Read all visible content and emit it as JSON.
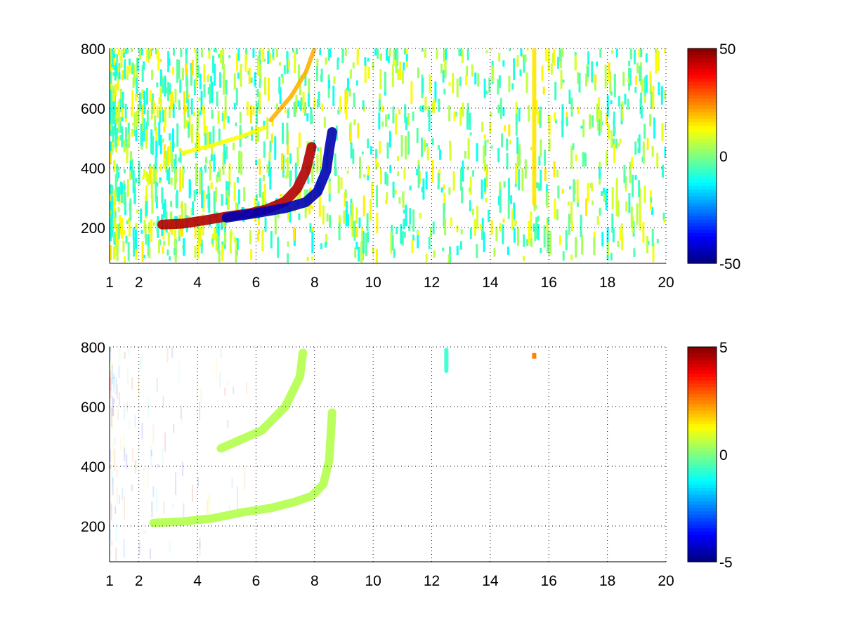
{
  "chart_data": [
    {
      "type": "heatmap",
      "title": "",
      "xlabel": "",
      "ylabel": "",
      "xlim": [
        1,
        20
      ],
      "ylim": [
        80,
        800
      ],
      "x_ticks": [
        "1",
        "2",
        "4",
        "6",
        "8",
        "10",
        "12",
        "14",
        "16",
        "18",
        "20"
      ],
      "x_tick_values": [
        1,
        2,
        4,
        6,
        8,
        10,
        12,
        14,
        16,
        18,
        20
      ],
      "y_ticks": [
        "200",
        "400",
        "600",
        "800"
      ],
      "y_tick_values": [
        200,
        400,
        600,
        800
      ],
      "grid": true,
      "colormap": "jet",
      "clim": [
        -50,
        50
      ],
      "colorbar_ticks": [
        "50",
        "0",
        "-50"
      ],
      "colorbar_tick_values": [
        50,
        0,
        -50
      ],
      "features": [
        {
          "name": "positive ridge",
          "points": [
            [
              2.8,
              210
            ],
            [
              3.5,
              213
            ],
            [
              4.3,
              225
            ],
            [
              5.0,
              237
            ],
            [
              5.8,
              248
            ],
            [
              6.4,
              262
            ],
            [
              7.0,
              288
            ],
            [
              7.4,
              330
            ],
            [
              7.7,
              390
            ],
            [
              7.9,
              470
            ]
          ],
          "value": 45
        },
        {
          "name": "negative ridge",
          "points": [
            [
              5.0,
              233
            ],
            [
              6.0,
              248
            ],
            [
              7.0,
              265
            ],
            [
              7.7,
              285
            ],
            [
              8.1,
              320
            ],
            [
              8.4,
              390
            ],
            [
              8.5,
              460
            ],
            [
              8.6,
              520
            ]
          ],
          "value": -45
        },
        {
          "name": "upper band",
          "points": [
            [
              3.5,
              450
            ],
            [
              4.5,
              475
            ],
            [
              5.5,
              505
            ],
            [
              6.3,
              535
            ]
          ],
          "value": 12
        },
        {
          "name": "upper ridge",
          "points": [
            [
              6.5,
              560
            ],
            [
              7.2,
              640
            ],
            [
              7.7,
              720
            ],
            [
              8.0,
              800
            ]
          ],
          "value": 20
        },
        {
          "name": "vertical line",
          "points": [
            [
              15.5,
              280
            ],
            [
              15.5,
              800
            ]
          ],
          "value": 15
        }
      ]
    },
    {
      "type": "heatmap",
      "title": "",
      "xlabel": "",
      "ylabel": "",
      "xlim": [
        1,
        20
      ],
      "ylim": [
        80,
        800
      ],
      "x_ticks": [
        "1",
        "2",
        "4",
        "6",
        "8",
        "10",
        "12",
        "14",
        "16",
        "18",
        "20"
      ],
      "x_tick_values": [
        1,
        2,
        4,
        6,
        8,
        10,
        12,
        14,
        16,
        18,
        20
      ],
      "y_ticks": [
        "200",
        "400",
        "600",
        "800"
      ],
      "y_tick_values": [
        200,
        400,
        600,
        800
      ],
      "grid": true,
      "colormap": "jet",
      "clim": [
        -5,
        5
      ],
      "colorbar_ticks": [
        "5",
        "0",
        "-5"
      ],
      "colorbar_tick_values": [
        5,
        0,
        -5
      ],
      "features": [
        {
          "name": "main ridge",
          "points": [
            [
              2.5,
              210
            ],
            [
              3.5,
              215
            ],
            [
              4.5,
              225
            ],
            [
              5.5,
              245
            ],
            [
              6.5,
              260
            ],
            [
              7.3,
              280
            ],
            [
              7.9,
              300
            ],
            [
              8.3,
              340
            ],
            [
              8.5,
              420
            ],
            [
              8.6,
              580
            ]
          ],
          "value": 0.5
        },
        {
          "name": "upper band",
          "points": [
            [
              4.8,
              460
            ],
            [
              5.5,
              490
            ],
            [
              6.2,
              520
            ],
            [
              7.0,
              600
            ],
            [
              7.5,
              700
            ],
            [
              7.6,
              780
            ]
          ],
          "value": 0.5
        },
        {
          "name": "isolated spot",
          "points": [
            [
              15.5,
              770
            ]
          ],
          "value": 2.5
        },
        {
          "name": "isolated streak",
          "points": [
            [
              12.5,
              720
            ],
            [
              12.5,
              790
            ]
          ],
          "value": -0.8
        }
      ]
    }
  ]
}
